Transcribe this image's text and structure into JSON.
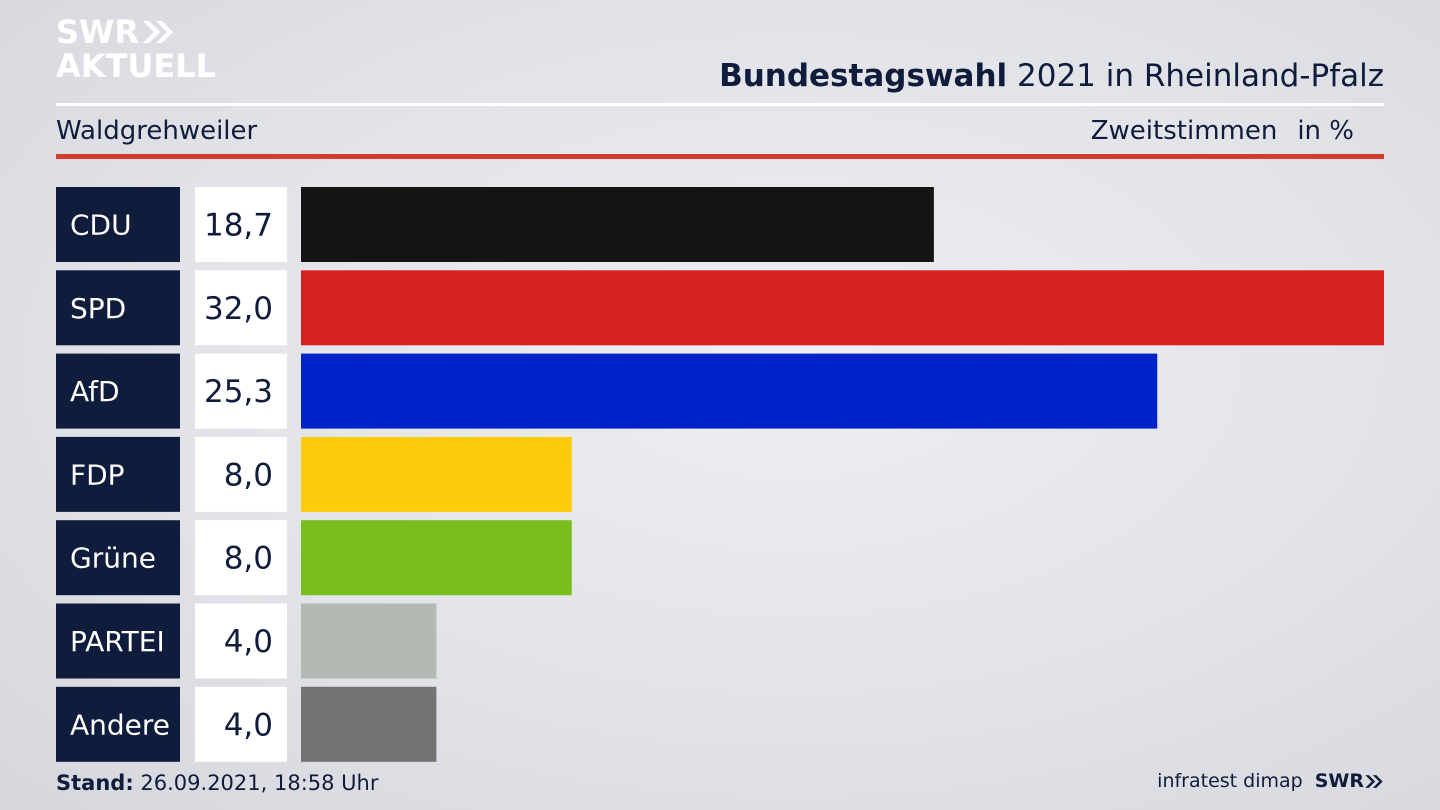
{
  "brand": {
    "logo_line1": "SWR",
    "logo_line2": "AKTUELL",
    "footer_brand": "SWR"
  },
  "header": {
    "title_bold": "Bundestagswahl",
    "title_rest": " 2021 in Rheinland-Pfalz",
    "location": "Waldgrehweiler",
    "measure": "Zweitstimmen",
    "unit": "in %"
  },
  "footer": {
    "stand_label": "Stand:",
    "stand_value": " 26.09.2021, 18:58 Uhr",
    "source": "infratest dimap"
  },
  "chart_data": {
    "type": "bar",
    "orientation": "horizontal",
    "categories": [
      "CDU",
      "SPD",
      "AfD",
      "FDP",
      "Grüne",
      "PARTEI",
      "Andere"
    ],
    "values": [
      18.7,
      32.0,
      25.3,
      8.0,
      8.0,
      4.0,
      4.0
    ],
    "value_labels": [
      "18,7",
      "32,0",
      "25,3",
      "8,0",
      "8,0",
      "4,0",
      "4,0"
    ],
    "colors": [
      "#141414",
      "#d62121",
      "#0022c9",
      "#fecb0a",
      "#78be1e",
      "#b3bab3",
      "#737373"
    ],
    "xlim": [
      0,
      32
    ],
    "grid": false,
    "legend": "none"
  }
}
